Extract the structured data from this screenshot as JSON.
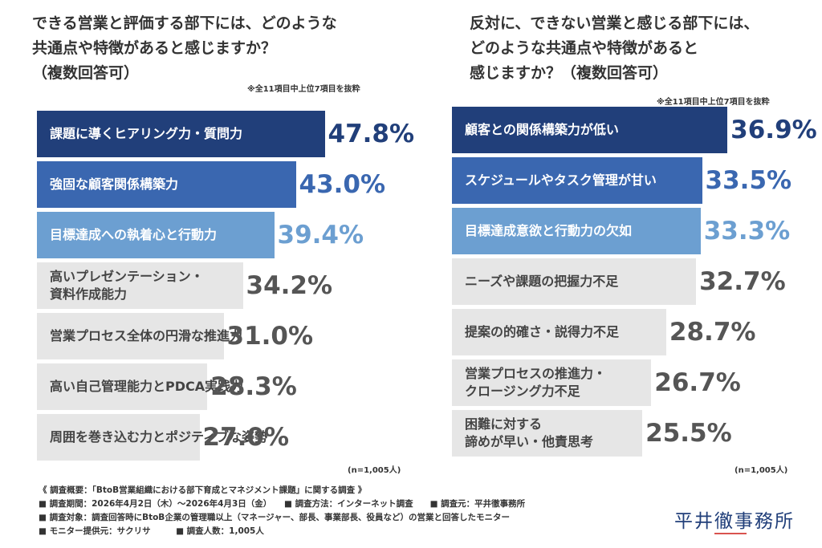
{
  "chart_data": [
    {
      "type": "bar",
      "title": "できる営業と評価する部下には、どのような\n共通点や特徴があると感じますか？\n（複数回答可）",
      "note": "※全11項目中上位7項目を抜粋",
      "sample": "(n=1,005人)",
      "categories": [
        "課題に導くヒアリング力・質問力",
        "強固な顧客関係構築力",
        "目標達成への執着心と行動力",
        "高いプレゼンテーション・\n資料作成能力",
        "営業プロセス全体の円滑な推進力",
        "高い自己管理能力とPDCA実践力",
        "周囲を巻き込む力とポジティブな姿勢"
      ],
      "values": [
        47.8,
        43.0,
        39.4,
        34.2,
        31.0,
        28.3,
        27.0
      ],
      "value_labels": [
        "47.8%",
        "43.0%",
        "39.4%",
        "34.2%",
        "31.0%",
        "28.3%",
        "27.0%"
      ],
      "colors": [
        "#213f7a",
        "#3a67b0",
        "#6c9fd1",
        "#e6e6e6",
        "#e6e6e6",
        "#e6e6e6",
        "#e6e6e6"
      ],
      "label_colors": [
        "#ffffff",
        "#ffffff",
        "#ffffff",
        "#444444",
        "#444444",
        "#444444",
        "#444444"
      ],
      "value_label_colors": [
        "#213f7a",
        "#3a67b0",
        "#6c9fd1",
        "#555555",
        "#555555",
        "#555555",
        "#555555"
      ]
    },
    {
      "type": "bar",
      "title": "反対に、できない営業と感じる部下には、\nどのような共通点や特徴があると\n感じますか？（複数回答可）",
      "note": "※全11項目中上位7項目を抜粋",
      "sample": "(n=1,005人)",
      "categories": [
        "顧客との関係構築力が低い",
        "スケジュールやタスク管理が甘い",
        "目標達成意欲と行動力の欠如",
        "ニーズや課題の把握力不足",
        "提案の的確さ・説得力不足",
        "営業プロセスの推進力・\nクロージング力不足",
        "困難に対する\n諦めが早い・他責思考"
      ],
      "values": [
        36.9,
        33.5,
        33.3,
        32.7,
        28.7,
        26.7,
        25.5
      ],
      "value_labels": [
        "36.9%",
        "33.5%",
        "33.3%",
        "32.7%",
        "28.7%",
        "26.7%",
        "25.5%"
      ],
      "colors": [
        "#213f7a",
        "#3a67b0",
        "#6c9fd1",
        "#e6e6e6",
        "#e6e6e6",
        "#e6e6e6",
        "#e6e6e6"
      ],
      "label_colors": [
        "#ffffff",
        "#ffffff",
        "#ffffff",
        "#444444",
        "#444444",
        "#444444",
        "#444444"
      ],
      "value_label_colors": [
        "#213f7a",
        "#3a67b0",
        "#6c9fd1",
        "#555555",
        "#555555",
        "#555555",
        "#555555"
      ]
    }
  ],
  "footer": {
    "lines": [
      "《 調査概要：「BtoB営業組織における部下育成とマネジメント課題」に関する調査 》",
      "■ 調査期間：2026年4月2日（木）〜2026年4月3日（金）　　■ 調査方法：インターネット調査　　■ 調査元：平井徹事務所",
      "■ 調査対象：調査回答時にBtoB企業の管理職以上（マネージャー、部長、事業部長、役員など）の営業と回答したモニター",
      "■ モニター提供元：サクリサ　　　■ 調査人数：1,005人"
    ]
  },
  "logo": "平井徹事務所"
}
